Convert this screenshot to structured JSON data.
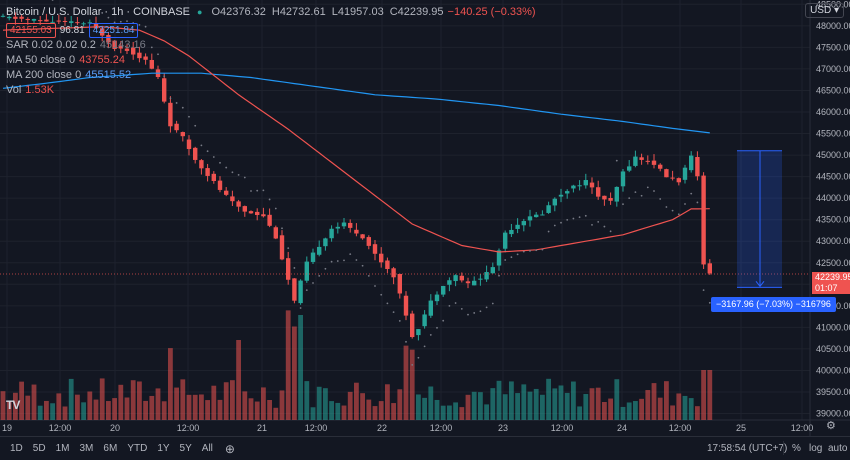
{
  "legend": {
    "symbol": "Bitcoin / U.S. Dollar · 1h · COINBASE",
    "open": "O42376.32",
    "high": "H42732.61",
    "low": "L41957.03",
    "close": "C42239.95",
    "change": "−140.25 (−0.33%)",
    "bid": "42155.03",
    "spread": "96.81",
    "ask": "42251.84",
    "indicators": [
      {
        "name": "SAR 0.02 0.02 0.2",
        "value": "45143.16",
        "color": "#787b86"
      },
      {
        "name": "MA 50 close 0",
        "value": "43755.24",
        "color": "#ef5350"
      },
      {
        "name": "MA 200 close 0",
        "value": "45515.52",
        "color": "#5b9cf6"
      },
      {
        "name": "Vol",
        "value": "1.53K",
        "color": "#ef5350"
      }
    ]
  },
  "currency": "USD ▾",
  "last_price": {
    "value": "42239.95",
    "countdown": "01:07"
  },
  "measure": {
    "label": "−3167.96 (−7.03%) −316796"
  },
  "time_axis": [
    "19",
    "12:00",
    "20",
    "12:00",
    "21",
    "12:00",
    "22",
    "12:00",
    "23",
    "12:00",
    "24",
    "12:00",
    "25",
    "12:00"
  ],
  "bottom": {
    "ranges": [
      "1D",
      "5D",
      "1M",
      "3M",
      "6M",
      "YTD",
      "1Y",
      "5Y",
      "All"
    ],
    "clock": "17:58:54 (UTC+7)",
    "percent": "%",
    "log": "log",
    "auto": "auto"
  },
  "logo": "TV",
  "colors": {
    "up": "#26a69a",
    "down": "#ef5350",
    "ma50": "#ef5350",
    "ma200": "#2196f3",
    "bg": "#131722"
  },
  "chart_data": {
    "type": "candlestick",
    "interval": "1h",
    "ylim": [
      38850,
      48600
    ],
    "y_ticks": [
      39000,
      39500,
      40000,
      40500,
      41000,
      41500,
      42000,
      42500,
      43000,
      43500,
      44000,
      44500,
      45000,
      45500,
      46000,
      46500,
      47000,
      47500,
      48000,
      48500
    ],
    "series": [
      {
        "name": "price",
        "keypoints": [
          [
            0,
            48200
          ],
          [
            8,
            48100
          ],
          [
            14,
            48050
          ],
          [
            16,
            47800
          ],
          [
            18,
            47500
          ],
          [
            20,
            47450
          ],
          [
            23,
            47200
          ],
          [
            25,
            46800
          ],
          [
            27,
            45700
          ],
          [
            29,
            45400
          ],
          [
            31,
            44900
          ],
          [
            35,
            44200
          ],
          [
            37,
            43900
          ],
          [
            39,
            43700
          ],
          [
            42,
            43600
          ],
          [
            44,
            43100
          ],
          [
            46,
            42100
          ],
          [
            47,
            41600
          ],
          [
            49,
            42500
          ],
          [
            51,
            42900
          ],
          [
            53,
            43300
          ],
          [
            55,
            43400
          ],
          [
            58,
            43100
          ],
          [
            60,
            42700
          ],
          [
            63,
            42200
          ],
          [
            65,
            41300
          ],
          [
            66,
            40800
          ],
          [
            67,
            41000
          ],
          [
            69,
            41600
          ],
          [
            71,
            42000
          ],
          [
            73,
            42200
          ],
          [
            75,
            42000
          ],
          [
            77,
            42150
          ],
          [
            79,
            42400
          ],
          [
            81,
            43200
          ],
          [
            84,
            43500
          ],
          [
            87,
            43650
          ],
          [
            89,
            44000
          ],
          [
            91,
            44200
          ],
          [
            94,
            44400
          ],
          [
            96,
            44050
          ],
          [
            98,
            43900
          ],
          [
            100,
            44600
          ],
          [
            102,
            44950
          ],
          [
            105,
            44800
          ],
          [
            107,
            44500
          ],
          [
            109,
            44400
          ],
          [
            111,
            44950
          ],
          [
            112,
            44500
          ],
          [
            113,
            42500
          ],
          [
            114,
            42240
          ]
        ]
      },
      {
        "name": "MA 50",
        "keypoints": [
          [
            0,
            47900
          ],
          [
            16,
            47980
          ],
          [
            22,
            47900
          ],
          [
            26,
            47650
          ],
          [
            30,
            47300
          ],
          [
            38,
            46400
          ],
          [
            46,
            45600
          ],
          [
            56,
            44500
          ],
          [
            66,
            43400
          ],
          [
            74,
            42900
          ],
          [
            80,
            42750
          ],
          [
            86,
            42800
          ],
          [
            94,
            43000
          ],
          [
            100,
            43150
          ],
          [
            108,
            43500
          ],
          [
            111,
            43750
          ],
          [
            114,
            43755
          ]
        ]
      },
      {
        "name": "MA 200",
        "keypoints": [
          [
            0,
            46550
          ],
          [
            6,
            46650
          ],
          [
            14,
            46800
          ],
          [
            24,
            46900
          ],
          [
            32,
            46900
          ],
          [
            40,
            46800
          ],
          [
            50,
            46600
          ],
          [
            60,
            46400
          ],
          [
            70,
            46300
          ],
          [
            80,
            46150
          ],
          [
            90,
            45950
          ],
          [
            100,
            45780
          ],
          [
            108,
            45620
          ],
          [
            114,
            45515
          ]
        ]
      },
      {
        "name": "Volume",
        "estimated": true,
        "spikes": {
          "21 morning": "high",
          "22 morning": "high"
        }
      }
    ],
    "measure_range": {
      "from": 45100,
      "to": 41930
    }
  }
}
